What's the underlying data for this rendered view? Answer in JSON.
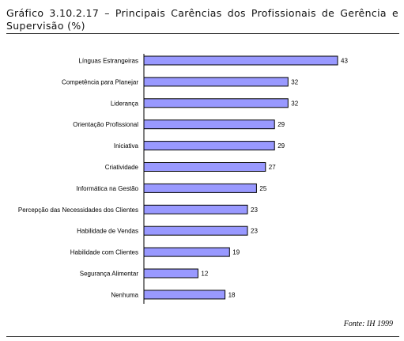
{
  "title": "Gráfico 3.10.2.17 – Principais Carências dos Profissionais de Gerência e Supervisão (%)",
  "source": "Fonte: IH 1999",
  "chart_data": {
    "type": "bar",
    "orientation": "horizontal",
    "title": "Gráfico 3.10.2.17 – Principais Carências dos Profissionais de Gerência e Supervisão (%)",
    "categories": [
      "Línguas Estrangeiras",
      "Competência para Planejar",
      "Liderança",
      "Orientação Profissional",
      "Iniciativa",
      "Criatividade",
      "Informática na Gestão",
      "Percepção das Necessidades dos Clientes",
      "Habilidade de Vendas",
      "Habilidade com Clientes",
      "Segurança Alimentar",
      "Nenhuma"
    ],
    "values": [
      43,
      32,
      32,
      29,
      29,
      27,
      25,
      23,
      23,
      19,
      12,
      18
    ],
    "bar_color": "#9999ff",
    "data_labels": true,
    "grid": false,
    "xlim": [
      0,
      43
    ]
  }
}
